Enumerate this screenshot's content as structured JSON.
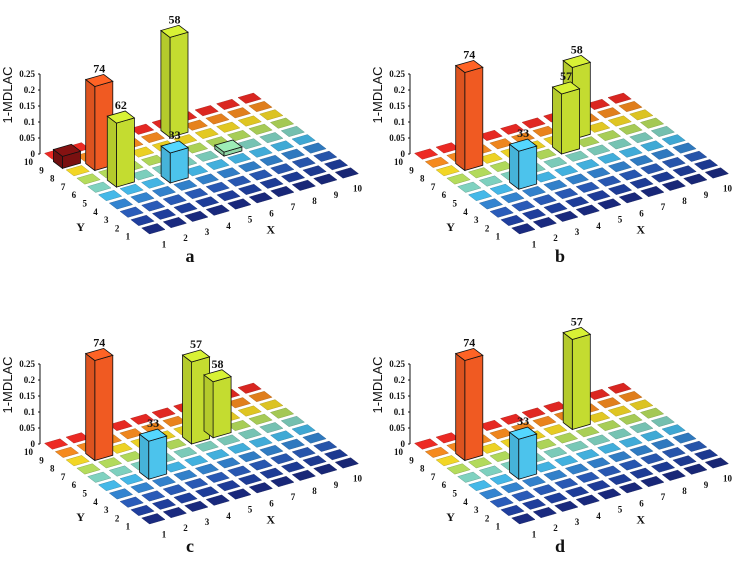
{
  "chart_data": [
    {
      "type": "bar3d",
      "panel_label": "a",
      "zlabel": "1-MDLAC",
      "xlabel": "X",
      "ylabel": "Y",
      "zlim": [
        0,
        0.25
      ],
      "zticks": [
        "0",
        "0.05",
        "0.1",
        "0.15",
        "0.2",
        "0.25"
      ],
      "xticks": [
        "1",
        "2",
        "3",
        "4",
        "5",
        "6",
        "7",
        "8",
        "9",
        "10"
      ],
      "yticks": [
        "1",
        "2",
        "3",
        "4",
        "5",
        "6",
        "7",
        "8",
        "9",
        "10"
      ],
      "bars": [
        {
          "x": 1,
          "y": 9,
          "value": 0.03,
          "label": ""
        },
        {
          "x": 2,
          "y": 8,
          "value": 0.21,
          "label": "74"
        },
        {
          "x": 2,
          "y": 6,
          "value": 0.16,
          "label": "62"
        },
        {
          "x": 4,
          "y": 5,
          "value": 0.075,
          "label": "33"
        },
        {
          "x": 6,
          "y": 9,
          "value": 0.25,
          "label": "58"
        },
        {
          "x": 7,
          "y": 6,
          "value": 0.01,
          "label": ""
        }
      ]
    },
    {
      "type": "bar3d",
      "panel_label": "b",
      "zlabel": "1-MDLAC",
      "xlabel": "X",
      "ylabel": "Y",
      "zlim": [
        0,
        0.25
      ],
      "zticks": [
        "0",
        "0.05",
        "0.1",
        "0.15",
        "0.2",
        "0.25"
      ],
      "xticks": [
        "1",
        "2",
        "3",
        "4",
        "5",
        "6",
        "7",
        "8",
        "9",
        "10"
      ],
      "yticks": [
        "1",
        "2",
        "3",
        "4",
        "5",
        "6",
        "7",
        "8",
        "9",
        "10"
      ],
      "bars": [
        {
          "x": 2,
          "y": 8,
          "value": 0.245,
          "label": "74"
        },
        {
          "x": 3,
          "y": 5,
          "value": 0.095,
          "label": "33"
        },
        {
          "x": 6,
          "y": 7,
          "value": 0.15,
          "label": "57"
        },
        {
          "x": 7,
          "y": 8,
          "value": 0.18,
          "label": "58"
        }
      ]
    },
    {
      "type": "bar3d",
      "panel_label": "c",
      "zlabel": "1-MDLAC",
      "xlabel": "X",
      "ylabel": "Y",
      "zlim": [
        0,
        0.25
      ],
      "zticks": [
        "0",
        "0.05",
        "0.1",
        "0.15",
        "0.2",
        "0.25"
      ],
      "xticks": [
        "1",
        "2",
        "3",
        "4",
        "5",
        "6",
        "7",
        "8",
        "9",
        "10"
      ],
      "yticks": [
        "1",
        "2",
        "3",
        "4",
        "5",
        "6",
        "7",
        "8",
        "9",
        "10"
      ],
      "bars": [
        {
          "x": 2,
          "y": 8,
          "value": 0.25,
          "label": "74"
        },
        {
          "x": 3,
          "y": 5,
          "value": 0.095,
          "label": "33"
        },
        {
          "x": 6,
          "y": 7,
          "value": 0.205,
          "label": "57"
        },
        {
          "x": 7,
          "y": 7,
          "value": 0.14,
          "label": "58"
        }
      ]
    },
    {
      "type": "bar3d",
      "panel_label": "d",
      "zlabel": "1-MDLAC",
      "xlabel": "X",
      "ylabel": "Y",
      "zlim": [
        0,
        0.25
      ],
      "zticks": [
        "0",
        "0.05",
        "0.1",
        "0.15",
        "0.2",
        "0.25"
      ],
      "xticks": [
        "1",
        "2",
        "3",
        "4",
        "5",
        "6",
        "7",
        "8",
        "9",
        "10"
      ],
      "yticks": [
        "1",
        "2",
        "3",
        "4",
        "5",
        "6",
        "7",
        "8",
        "9",
        "10"
      ],
      "bars": [
        {
          "x": 2,
          "y": 8,
          "value": 0.25,
          "label": "74"
        },
        {
          "x": 3,
          "y": 5,
          "value": 0.1,
          "label": "33"
        },
        {
          "x": 7,
          "y": 8,
          "value": 0.225,
          "label": "57"
        }
      ]
    }
  ],
  "colors": {
    "bar_74": "#f05a22",
    "bar_33": "#4cc3ec",
    "bar_57_58_62": "#c4dc30",
    "bar_small_a1": "#7a1010",
    "bar_small_a2": "#8fd7a6",
    "colormap_rows": [
      "#1a2a80",
      "#1f3f9e",
      "#2a5cba",
      "#3384d0",
      "#45b8e8",
      "#7fd2c0",
      "#b4dc5c",
      "#f2d625",
      "#f58a1f",
      "#ed2a24",
      "#7d1414"
    ]
  }
}
